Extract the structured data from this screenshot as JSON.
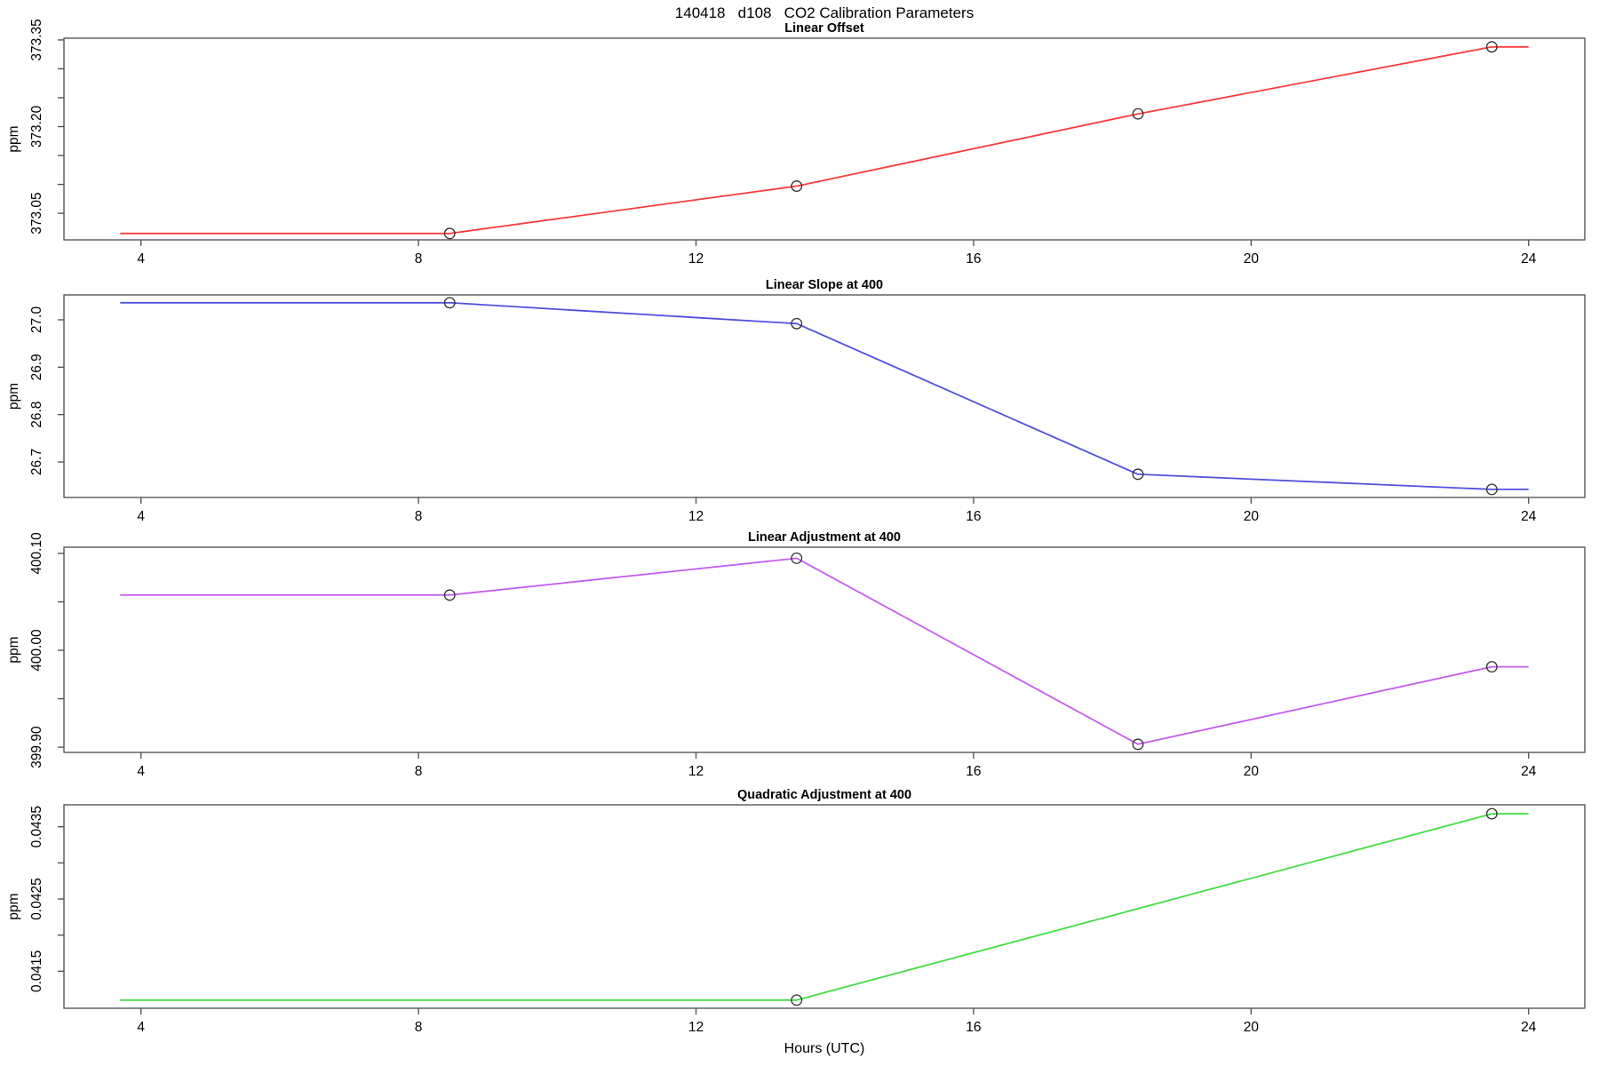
{
  "main_title": "140418   d108   CO2 Calibration Parameters",
  "x_axis": {
    "label": "Hours (UTC)",
    "tick_values": [
      4,
      8,
      12,
      16,
      20,
      24
    ],
    "tick_labels": [
      "4",
      "8",
      "12",
      "16",
      "20",
      "24"
    ],
    "range": [
      2.89,
      24.81
    ]
  },
  "y_axis_label": "ppm",
  "frame_color": "#4a4a4a",
  "marker_color": "#333333",
  "chart_data": [
    {
      "type": "line",
      "title": "Linear Offset",
      "color": "#fa3c3c",
      "ylabel": "ppm",
      "ylim": [
        373.004,
        373.353
      ],
      "yticks": [
        {
          "v": 373.05,
          "label": "373.05"
        },
        {
          "v": 373.1,
          "label": null
        },
        {
          "v": 373.15,
          "label": null
        },
        {
          "v": 373.2,
          "label": "373.20"
        },
        {
          "v": 373.25,
          "label": null
        },
        {
          "v": 373.3,
          "label": null
        },
        {
          "v": 373.35,
          "label": "373.35"
        }
      ],
      "points": [
        {
          "x": 3.7,
          "y": 373.015,
          "marker": false
        },
        {
          "x": 8.45,
          "y": 373.015,
          "marker": true
        },
        {
          "x": 13.45,
          "y": 373.097,
          "marker": true
        },
        {
          "x": 18.37,
          "y": 373.222,
          "marker": true
        },
        {
          "x": 23.47,
          "y": 373.338,
          "marker": true
        },
        {
          "x": 24.0,
          "y": 373.338,
          "marker": false
        }
      ]
    },
    {
      "type": "line",
      "title": "Linear Slope at 400",
      "color": "#5050dd",
      "ylabel": "ppm",
      "ylim": [
        26.625,
        27.0525
      ],
      "yticks": [
        {
          "v": 26.7,
          "label": "26.7"
        },
        {
          "v": 26.8,
          "label": "26.8"
        },
        {
          "v": 26.9,
          "label": "26.9"
        },
        {
          "v": 27.0,
          "label": "27.0"
        }
      ],
      "points": [
        {
          "x": 3.7,
          "y": 27.036,
          "marker": false
        },
        {
          "x": 8.45,
          "y": 27.036,
          "marker": true
        },
        {
          "x": 13.45,
          "y": 26.992,
          "marker": true
        },
        {
          "x": 18.37,
          "y": 26.674,
          "marker": true
        },
        {
          "x": 23.47,
          "y": 26.642,
          "marker": true
        },
        {
          "x": 24.0,
          "y": 26.642,
          "marker": false
        }
      ]
    },
    {
      "type": "line",
      "title": "Linear Adjustment at 400",
      "color": "#c55bef",
      "ylabel": "ppm",
      "ylim": [
        399.8946,
        400.1064
      ],
      "yticks": [
        {
          "v": 399.9,
          "label": "399.90"
        },
        {
          "v": 399.95,
          "label": null
        },
        {
          "v": 400.0,
          "label": "400.00"
        },
        {
          "v": 400.05,
          "label": null
        },
        {
          "v": 400.1,
          "label": "400.10"
        }
      ],
      "points": [
        {
          "x": 3.7,
          "y": 400.057,
          "marker": false
        },
        {
          "x": 8.45,
          "y": 400.057,
          "marker": true
        },
        {
          "x": 13.45,
          "y": 400.095,
          "marker": true
        },
        {
          "x": 18.37,
          "y": 399.903,
          "marker": true
        },
        {
          "x": 23.47,
          "y": 399.983,
          "marker": true
        },
        {
          "x": 24.0,
          "y": 399.983,
          "marker": false
        }
      ]
    },
    {
      "type": "line",
      "title": "Quadratic Adjustment at 400",
      "color": "#44dd44",
      "ylabel": "ppm",
      "ylim": [
        0.040987,
        0.043804
      ],
      "yticks": [
        {
          "v": 0.0415,
          "label": "0.0415"
        },
        {
          "v": 0.042,
          "label": null
        },
        {
          "v": 0.0425,
          "label": "0.0425"
        },
        {
          "v": 0.043,
          "label": null
        },
        {
          "v": 0.0435,
          "label": "0.0435"
        }
      ],
      "points": [
        {
          "x": 3.7,
          "y": 0.0411,
          "marker": false
        },
        {
          "x": 13.45,
          "y": 0.0411,
          "marker": true
        },
        {
          "x": 23.47,
          "y": 0.04368,
          "marker": true
        },
        {
          "x": 24.0,
          "y": 0.04368,
          "marker": false
        }
      ]
    }
  ]
}
